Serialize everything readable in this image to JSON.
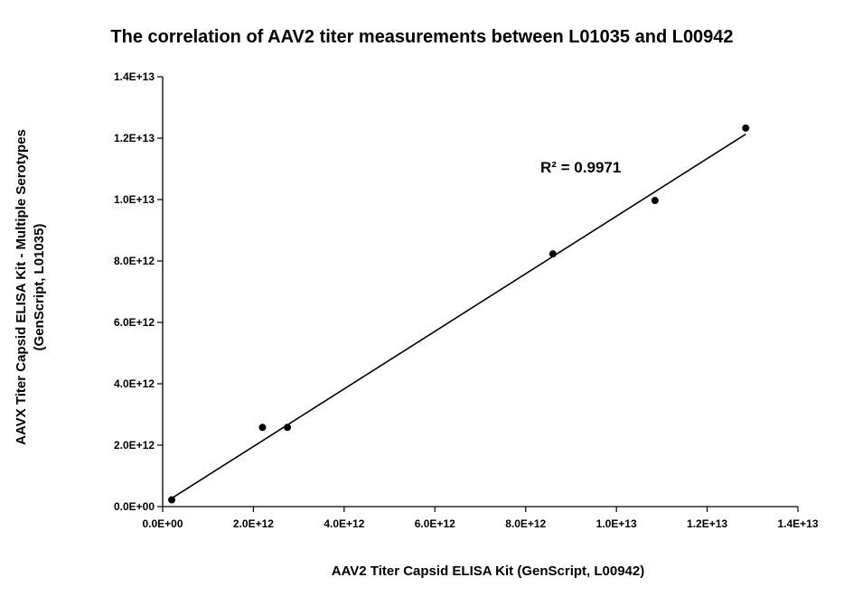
{
  "chart_data": {
    "type": "scatter",
    "title": "The correlation of AAV2 titer measurements between L01035 and L00942",
    "xlabel": "AAV2 Titer Capsid ELISA Kit (GenScript, L00942)",
    "ylabel_lines": [
      "AAVX Titer Capsid ELISA Kit - Multiple Serotypes",
      "(GenScript, L01035)"
    ],
    "xlim": [
      0,
      14000000000000
    ],
    "ylim": [
      0,
      14000000000000
    ],
    "x_ticks": [
      0,
      2000000000000,
      4000000000000,
      6000000000000,
      8000000000000,
      10000000000000,
      12000000000000,
      14000000000000
    ],
    "y_ticks": [
      0,
      2000000000000,
      4000000000000,
      6000000000000,
      8000000000000,
      10000000000000,
      12000000000000,
      14000000000000
    ],
    "x_tick_labels": [
      "0.0E+00",
      "2.0E+12",
      "4.0E+12",
      "6.0E+12",
      "8.0E+12",
      "1.0E+13",
      "1.2E+13",
      "1.4E+13"
    ],
    "y_tick_labels": [
      "0.0E+00",
      "2.0E+12",
      "4.0E+12",
      "6.0E+12",
      "8.0E+12",
      "1.0E+13",
      "1.2E+13",
      "1.4E+13"
    ],
    "points": [
      {
        "x": 200000000000,
        "y": 220000000000
      },
      {
        "x": 2200000000000,
        "y": 2580000000000
      },
      {
        "x": 2750000000000,
        "y": 2580000000000
      },
      {
        "x": 8600000000000,
        "y": 8230000000000
      },
      {
        "x": 10850000000000,
        "y": 9970000000000
      },
      {
        "x": 12850000000000,
        "y": 12330000000000
      }
    ],
    "trendline": {
      "type": "linear",
      "x_range": [
        200000000000,
        12850000000000
      ],
      "y_range": [
        270000000000,
        12130000000000
      ]
    },
    "r2_label": "R² = 0.9971",
    "r2_value": 0.9971,
    "grid": false,
    "legend": "none"
  }
}
